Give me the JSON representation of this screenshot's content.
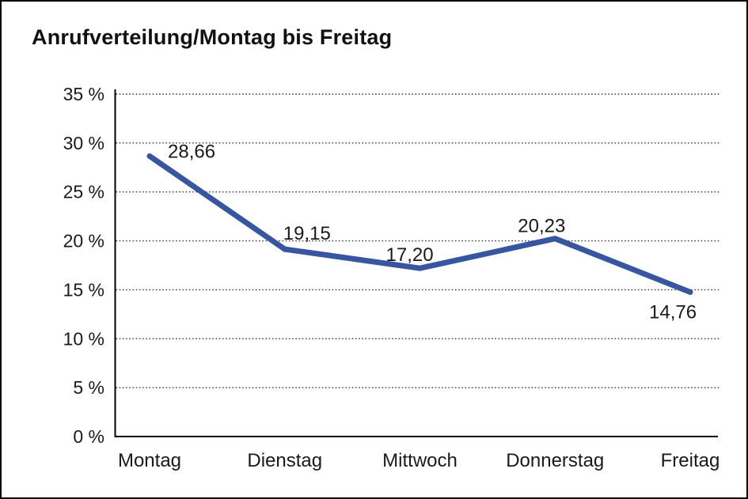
{
  "chart_data": {
    "type": "line",
    "title": "Anrufverteilung/Montag bis Freitag",
    "categories": [
      "Montag",
      "Dienstag",
      "Mittwoch",
      "Donnerstag",
      "Freitag"
    ],
    "series": [
      {
        "name": "Anrufverteilung",
        "values": [
          28.66,
          19.15,
          17.2,
          20.23,
          14.76
        ],
        "value_labels": [
          "28,66",
          "19,15",
          "17,20",
          "20,23",
          "14,76"
        ],
        "color": "#38569F"
      }
    ],
    "xlabel": "",
    "ylabel": "",
    "ylim": [
      0,
      35
    ],
    "y_tick_step": 5,
    "y_tick_labels": [
      "0 %",
      "5 %",
      "10 %",
      "15 %",
      "20 %",
      "25 %",
      "30 %",
      "35 %"
    ],
    "grid": "horizontal-dotted",
    "legend": "none",
    "value_format": "percent, comma decimal separator"
  },
  "colors": {
    "line": "#38569F",
    "text": "#1a1a1a",
    "grid_dots": "#3a3a3a",
    "axis": "#000000",
    "background": "#ffffff",
    "frame_border": "#000000"
  }
}
